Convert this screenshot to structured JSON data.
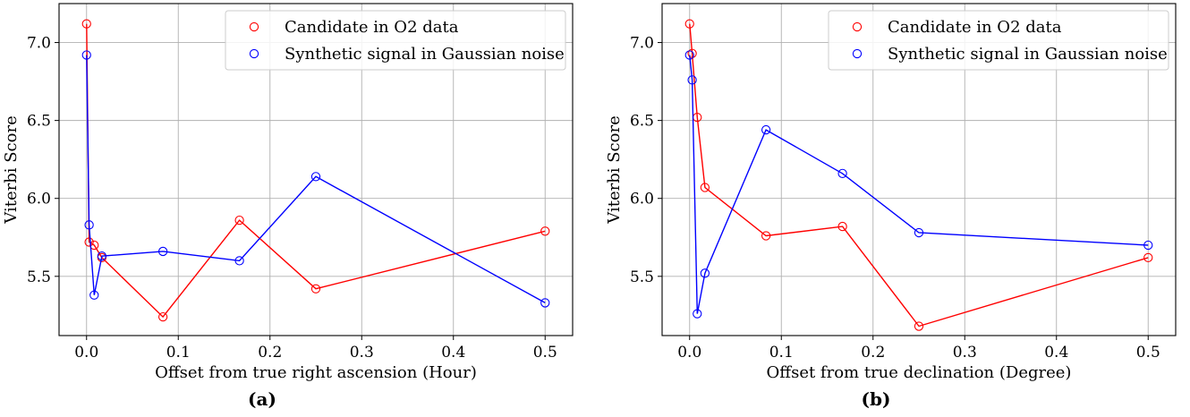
{
  "chart_data": [
    {
      "type": "line",
      "caption": "(a)",
      "xlabel": "Offset from true right ascension (Hour)",
      "ylabel": "Viterbi Score",
      "xlim": [
        -0.03,
        0.53
      ],
      "ylim": [
        5.12,
        7.25
      ],
      "xticks": [
        0.0,
        0.1,
        0.2,
        0.3,
        0.4,
        0.5
      ],
      "xtick_labels": [
        "0.0",
        "0.1",
        "0.2",
        "0.3",
        "0.4",
        "0.5"
      ],
      "yticks": [
        5.5,
        6.0,
        6.5,
        7.0
      ],
      "ytick_labels": [
        "5.5",
        "6.0",
        "6.5",
        "7.0"
      ],
      "grid": true,
      "legend": "top-right",
      "series": [
        {
          "name": "Candidate in O2 data",
          "color": "#ff0000",
          "x": [
            0.0,
            0.0028,
            0.0083,
            0.0167,
            0.0833,
            0.1667,
            0.25,
            0.5
          ],
          "y": [
            7.12,
            5.72,
            5.7,
            5.62,
            5.24,
            5.86,
            5.42,
            5.79
          ]
        },
        {
          "name": "Synthetic signal in Gaussian noise",
          "color": "#0000ff",
          "x": [
            0.0,
            0.0028,
            0.0083,
            0.0167,
            0.0833,
            0.1667,
            0.25,
            0.5
          ],
          "y": [
            6.92,
            5.83,
            5.38,
            5.63,
            5.66,
            5.6,
            6.14,
            5.33
          ]
        }
      ]
    },
    {
      "type": "line",
      "caption": "(b)",
      "xlabel": "Offset from true declination (Degree)",
      "ylabel": "Viterbi Score",
      "xlim": [
        -0.03,
        0.53
      ],
      "ylim": [
        5.12,
        7.25
      ],
      "xticks": [
        0.0,
        0.1,
        0.2,
        0.3,
        0.4,
        0.5
      ],
      "xtick_labels": [
        "0.0",
        "0.1",
        "0.2",
        "0.3",
        "0.4",
        "0.5"
      ],
      "yticks": [
        5.5,
        6.0,
        6.5,
        7.0
      ],
      "ytick_labels": [
        "5.5",
        "6.0",
        "6.5",
        "7.0"
      ],
      "grid": true,
      "legend": "top-right",
      "series": [
        {
          "name": "Candidate in O2 data",
          "color": "#ff0000",
          "x": [
            0.0,
            0.0028,
            0.0083,
            0.0167,
            0.0833,
            0.1667,
            0.25,
            0.5
          ],
          "y": [
            7.12,
            6.93,
            6.52,
            6.07,
            5.76,
            5.82,
            5.18,
            5.62
          ]
        },
        {
          "name": "Synthetic signal in Gaussian noise",
          "color": "#0000ff",
          "x": [
            0.0,
            0.0028,
            0.0083,
            0.0167,
            0.0833,
            0.1667,
            0.25,
            0.5
          ],
          "y": [
            6.92,
            6.76,
            5.26,
            5.52,
            6.44,
            6.16,
            5.78,
            5.7
          ]
        }
      ]
    }
  ]
}
